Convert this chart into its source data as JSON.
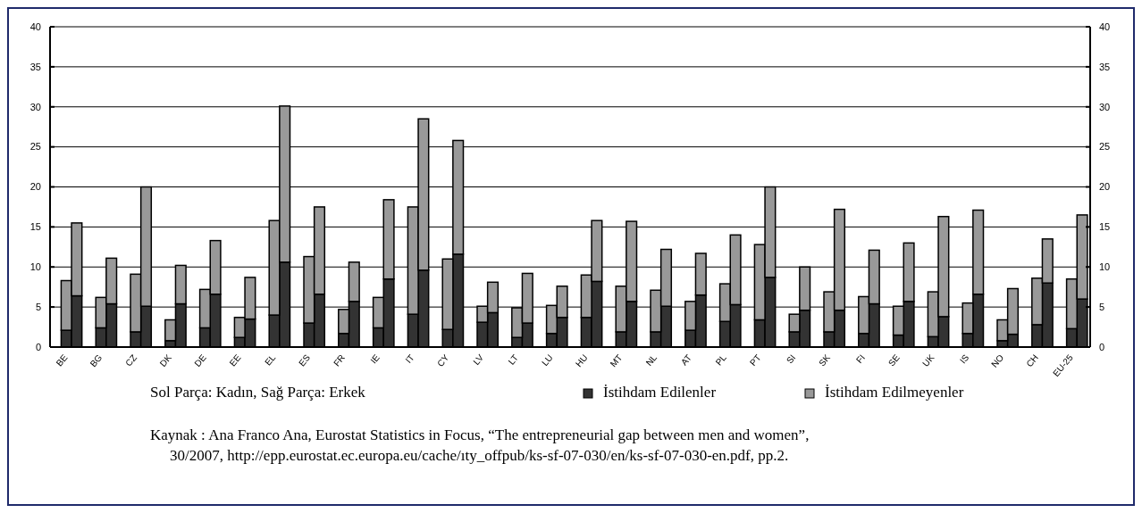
{
  "chart_data": {
    "type": "bar",
    "stacked": true,
    "categories": [
      "BE",
      null,
      "BG",
      null,
      "CZ",
      null,
      "DK",
      null,
      "DE",
      null,
      "EE",
      null,
      "EL",
      null,
      "ES",
      null,
      "FR",
      null,
      "IE",
      null,
      "IT",
      null,
      "CY",
      null,
      "LV",
      null,
      "LT",
      null,
      "LU",
      null,
      "HU",
      null,
      "MT",
      null,
      "NL",
      null,
      "AT",
      null,
      "PL",
      null,
      "PT",
      null,
      "SI",
      null,
      "SK",
      null,
      "FI",
      null,
      "SE",
      null,
      "UK",
      null,
      "IS",
      null,
      "NO",
      null,
      "CH",
      null,
      "EU-25",
      null
    ],
    "series": [
      {
        "name": "İstihdam Edilenler",
        "color": "#333333",
        "values": [
          2.1,
          6.4,
          2.4,
          5.4,
          1.9,
          5.1,
          0.8,
          5.4,
          2.4,
          6.6,
          1.2,
          3.5,
          4.0,
          10.6,
          3.0,
          6.6,
          1.7,
          5.7,
          2.4,
          8.5,
          4.1,
          9.6,
          2.2,
          11.6,
          3.1,
          4.3,
          1.2,
          3.0,
          1.7,
          3.7,
          3.7,
          8.2,
          1.9,
          5.7,
          1.9,
          5.1,
          2.1,
          6.5,
          3.2,
          5.3,
          3.4,
          8.7,
          1.9,
          4.6,
          1.9,
          4.6,
          1.7,
          5.4,
          1.5,
          5.7,
          1.3,
          3.8,
          1.7,
          6.6,
          0.8,
          1.6,
          2.8,
          8.0,
          2.3,
          6.0
        ]
      },
      {
        "name": "İstihdam Edilmeyenler",
        "color": "#999999",
        "values": [
          6.2,
          9.1,
          3.8,
          5.7,
          7.2,
          14.9,
          2.6,
          4.8,
          4.8,
          6.7,
          2.5,
          5.2,
          11.8,
          19.5,
          8.3,
          10.9,
          3.0,
          4.9,
          3.8,
          9.9,
          13.4,
          18.9,
          8.8,
          14.2,
          2.0,
          3.8,
          3.7,
          6.2,
          3.5,
          3.9,
          5.3,
          7.6,
          5.7,
          10.0,
          5.2,
          7.1,
          3.6,
          5.2,
          4.7,
          8.7,
          9.4,
          11.3,
          2.2,
          5.4,
          5.0,
          12.6,
          4.6,
          6.7,
          3.6,
          7.3,
          5.6,
          12.5,
          3.8,
          10.5,
          2.6,
          5.7,
          5.8,
          5.5,
          6.2,
          10.5
        ]
      }
    ],
    "ylim": [
      0,
      40
    ],
    "yticks": [
      0,
      5,
      10,
      15,
      20,
      25,
      30,
      35,
      40
    ],
    "y2lim": [
      0,
      40
    ],
    "y2ticks": [
      0,
      5,
      10,
      15,
      20,
      25,
      30,
      35,
      40
    ],
    "grid": "y",
    "legend": "bottom right",
    "annotations": [
      "Sol Parça: Kadın,  Sağ Parça: Erkek",
      "Kaynak : Ana Franco Ana, Eurostat Statistics in Focus, “The entrepreneurial gap between men and women”, 30/2007, http://epp.eurostat.ec.europa.eu/cache/ıty_offpub/ks-sf-07-030/en/ks-sf-07-030-en.pdf, pp.2."
    ]
  }
}
